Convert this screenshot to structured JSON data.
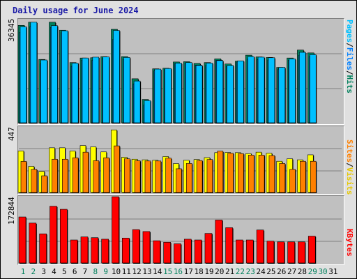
{
  "title": "Daily usage for June 2024",
  "colors": {
    "hits": "#00805c",
    "files": "#0080ff",
    "pages": "#00c0ff",
    "visits": "#ffff00",
    "sites": "#ff8000",
    "kbytes": "#ff0000",
    "title": "#1a1aa6",
    "weekend_day": "#00805c",
    "weekday": "#000000"
  },
  "panels": {
    "top": {
      "ymax_label": "36345",
      "legend": {
        "pages": "Pages",
        "files": "Files",
        "hits": "Hits",
        "sep": "/"
      }
    },
    "mid": {
      "ymax_label": "447",
      "legend": {
        "sites": "Sites",
        "visits": "Visits",
        "sep": "/"
      }
    },
    "bot": {
      "ymax_label": "172844",
      "legend": {
        "kbytes": "KBytes"
      }
    }
  },
  "chart_data": {
    "type": "bar",
    "title": "Daily usage for June 2024",
    "categories": [
      "1",
      "2",
      "3",
      "4",
      "5",
      "6",
      "7",
      "8",
      "9",
      "10",
      "11",
      "12",
      "13",
      "14",
      "15",
      "16",
      "17",
      "18",
      "19",
      "20",
      "21",
      "22",
      "23",
      "24",
      "25",
      "26",
      "27",
      "28",
      "29",
      "30",
      "31"
    ],
    "weekend_days": [
      "1",
      "2",
      "8",
      "9",
      "15",
      "16",
      "22",
      "23",
      "29",
      "30"
    ],
    "panels": [
      {
        "name": "usage",
        "ymax": 36345,
        "series": [
          {
            "name": "Hits",
            "values": [
              34300,
              35400,
              22300,
              35400,
              32600,
              21200,
              22800,
              22900,
              23300,
              32900,
              23300,
              15500,
              8200,
              19000,
              19200,
              21400,
              21500,
              20900,
              21200,
              22500,
              20700,
              21700,
              23800,
              23200,
              23000,
              19500,
              22800,
              25600,
              24600,
              0,
              0
            ]
          },
          {
            "name": "Files",
            "values": [
              31800,
              33900,
              20700,
              33600,
              31700,
              19900,
              22000,
              22000,
              22600,
              29300,
              22300,
              13700,
              6300,
              18300,
              18700,
              20800,
              21000,
              20300,
              20200,
              22000,
              19900,
              21400,
              22400,
              22300,
              22100,
              18900,
              22000,
              23700,
              23300,
              0,
              0
            ]
          },
          {
            "name": "Pages",
            "values": [
              33800,
              35400,
              22100,
              34200,
              32400,
              21000,
              22800,
              23100,
              23200,
              32500,
              23000,
              14700,
              7800,
              18900,
              19100,
              21000,
              21200,
              20200,
              21000,
              21900,
              20200,
              21800,
              23300,
              23100,
              22900,
              19500,
              22500,
              24800,
              24000,
              0,
              0
            ]
          }
        ]
      },
      {
        "name": "visitors",
        "ymax": 447,
        "series": [
          {
            "name": "Visits",
            "values": [
              283,
              178,
              144,
              305,
              305,
              283,
              320,
              311,
              277,
              427,
              240,
              227,
              223,
              220,
              245,
              197,
              220,
              225,
              238,
              272,
              273,
              272,
              265,
              275,
              268,
              213,
              230,
              223,
              257,
              0,
              0
            ]
          },
          {
            "name": "Sites",
            "values": [
              212,
              158,
              114,
              227,
              227,
              237,
              275,
              217,
              237,
              318,
              230,
              217,
              215,
              215,
              234,
              162,
              198,
              218,
              225,
              282,
              268,
              265,
              255,
              255,
              252,
              198,
              158,
              213,
              213,
              0,
              0
            ]
          }
        ]
      },
      {
        "name": "traffic",
        "ymax": 172844,
        "series": [
          {
            "name": "KBytes",
            "values": [
              120000,
              104000,
              76000,
              148000,
              140000,
              60000,
              68000,
              66000,
              62000,
              172800,
              65000,
              87000,
              82000,
              58000,
              54000,
              50000,
              62000,
              60000,
              77000,
              112000,
              92000,
              60000,
              60000,
              86000,
              57000,
              55000,
              55000,
              55000,
              70000,
              0,
              0
            ]
          }
        ]
      }
    ]
  }
}
